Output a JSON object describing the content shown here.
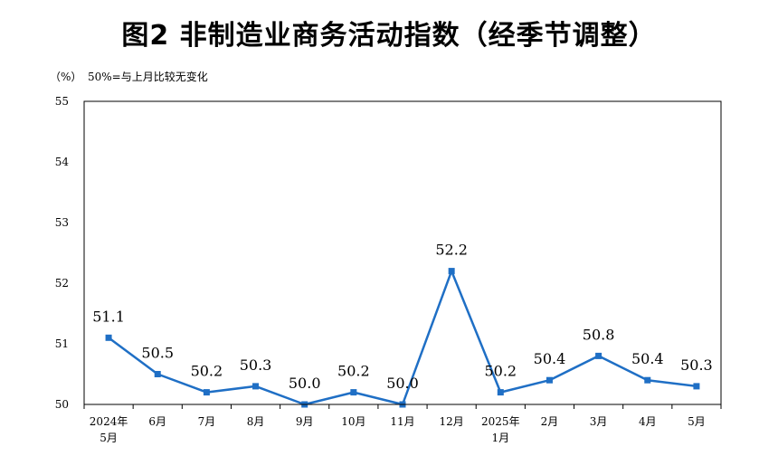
{
  "title": "图2  非制造业商务活动指数（经季节调整）",
  "y_unit": "（%）",
  "y_note": "50%=与上月比较无变化",
  "colors": {
    "series": "#1f6fc5",
    "frame": "#000000"
  },
  "chart_data": {
    "type": "line",
    "title": "图2  非制造业商务活动指数（经季节调整）",
    "xlabel": "",
    "ylabel": "（%）",
    "annotation": "50%=与上月比较无变化",
    "categories": [
      [
        "2024年",
        "5月"
      ],
      [
        "6月"
      ],
      [
        "7月"
      ],
      [
        "8月"
      ],
      [
        "9月"
      ],
      [
        "10月"
      ],
      [
        "11月"
      ],
      [
        "12月"
      ],
      [
        "2025年",
        "1月"
      ],
      [
        "2月"
      ],
      [
        "3月"
      ],
      [
        "4月"
      ],
      [
        "5月"
      ]
    ],
    "values": [
      51.1,
      50.5,
      50.2,
      50.3,
      50.0,
      50.2,
      50.0,
      52.2,
      50.2,
      50.4,
      50.8,
      50.4,
      50.3
    ],
    "data_labels": [
      "51.1",
      "50.5",
      "50.2",
      "50.3",
      "50.0",
      "50.2",
      "50.0",
      "52.2",
      "50.2",
      "50.4",
      "50.8",
      "50.4",
      "50.3"
    ],
    "ylim": [
      50,
      55
    ],
    "yticks": [
      "50",
      "51",
      "52",
      "53",
      "54",
      "55"
    ],
    "grid": false,
    "legend": "none",
    "marker": "square"
  }
}
